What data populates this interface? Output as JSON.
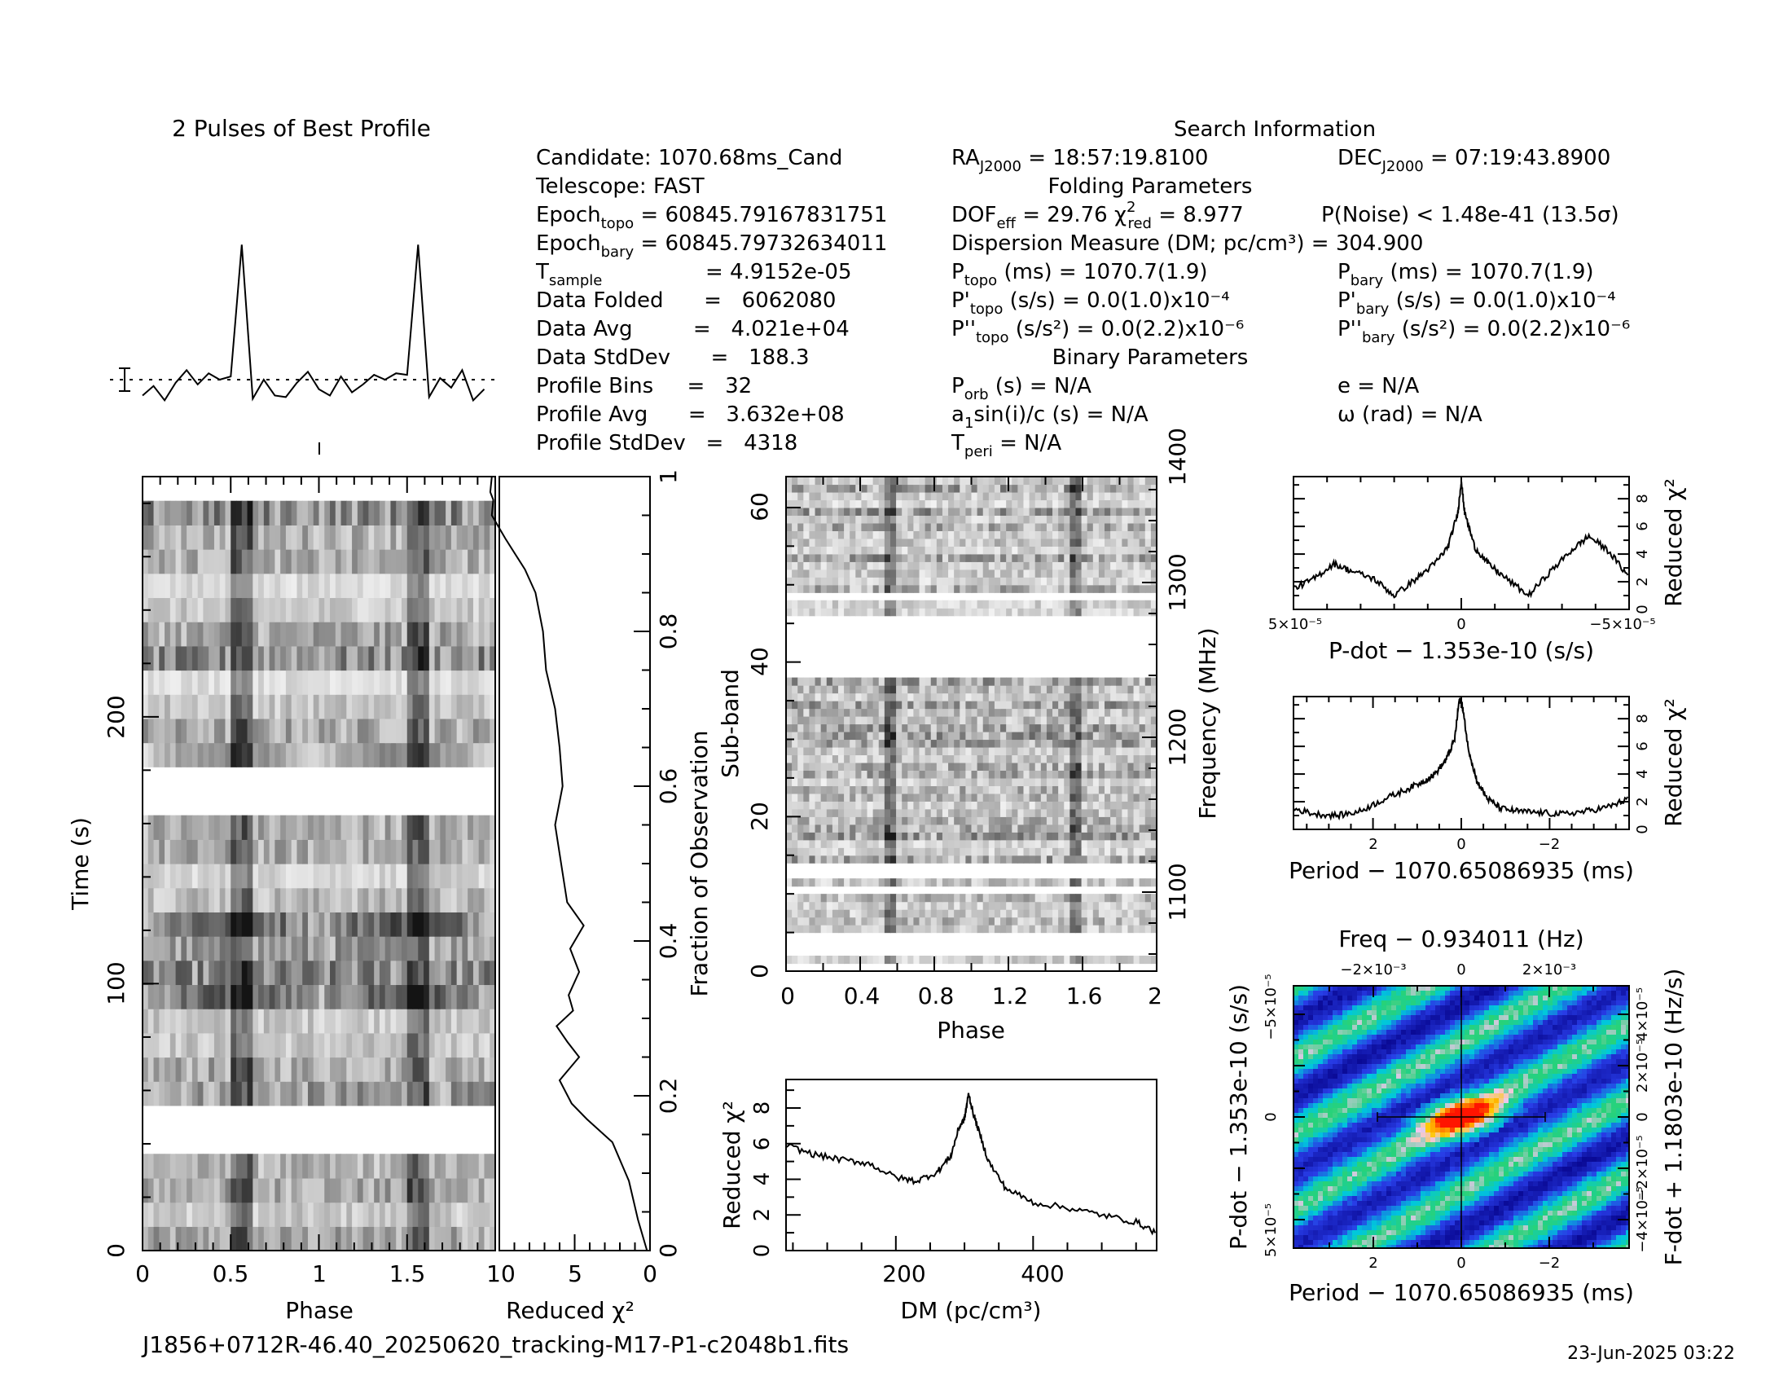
{
  "header": {
    "profile_title": "2 Pulses of Best Profile",
    "search_title": "Search Information",
    "folding_title": "Folding Parameters",
    "binary_title": "Binary Parameters"
  },
  "info": {
    "candidate": "Candidate:  1070.68ms_Cand",
    "telescope": "Telescope:  FAST",
    "epoch_topo": "= 60845.79167831751",
    "epoch_bary": "= 60845.79732634011",
    "t_sample": "=   4.9152e-05",
    "data_folded": "Data Folded      =   6062080",
    "data_avg": "Data Avg         =   4.021e+04",
    "data_stddev": "Data StdDev      =   188.3",
    "profile_bins": "Profile Bins     =   32",
    "profile_avg": "Profile Avg      =   3.632e+08",
    "profile_stddev": "Profile StdDev   =   4318",
    "ra": "= 18:57:19.8100",
    "dec": "= 07:19:43.8900",
    "dof": "= 29.76",
    "chi2_red": "= 8.977",
    "p_noise": "P(Noise) < 1.48e-41  (13.5σ)",
    "dm_line": "Dispersion Measure (DM; pc/cm³) = 304.900",
    "p_topo": "(ms) =  1070.7(1.9)",
    "p_bary": "(ms) =  1070.7(1.9)",
    "pd_topo": "(s/s) = 0.0(1.0)x10⁻⁴",
    "pd_bary": "(s/s) = 0.0(1.0)x10⁻⁴",
    "pdd_topo": "(s/s²) = 0.0(2.2)x10⁻⁶",
    "pdd_bary": "(s/s²) = 0.0(2.2)x10⁻⁶",
    "p_orb": "(s) = N/A",
    "e": "e = N/A",
    "a1sini": "sin(i)/c (s) = N/A",
    "omega": "ω (rad) = N/A",
    "t_peri": "= N/A"
  },
  "footer": {
    "filename": "J1856+0712R-46.40_20250620_tracking-M17-P1-c2048b1.fits",
    "date": "23-Jun-2025 03:22"
  },
  "colors": {
    "jet_low": "#0000a0",
    "jet_mid": "#00c8c8",
    "jet_high": "#ff2000"
  },
  "chart_data": [
    {
      "type": "line",
      "title": "2 Pulses of Best Profile",
      "x_phase": [
        0,
        0.0625,
        0.125,
        0.1875,
        0.25,
        0.3125,
        0.375,
        0.4375,
        0.5,
        0.5625,
        0.625,
        0.6875,
        0.75,
        0.8125,
        0.875,
        0.9375,
        1,
        1.0625,
        1.125,
        1.1875,
        1.25,
        1.3125,
        1.375,
        1.4375,
        1.5,
        1.5625,
        1.625,
        1.6875,
        1.75,
        1.8125,
        1.875,
        1.9375
      ],
      "values": [
        -1.0,
        -0.4,
        -1.3,
        -0.2,
        0.6,
        -0.3,
        0.4,
        0.0,
        0.2,
        8.5,
        -1.2,
        0.0,
        -1.0,
        -1.1,
        -0.2,
        0.5,
        -0.6,
        -1.0,
        0.2,
        -0.8,
        -0.3,
        0.3,
        0.0,
        0.4,
        0.3,
        8.5,
        -1.1,
        0.1,
        -0.5,
        0.6,
        -1.3,
        -0.6
      ],
      "xlim": [
        0,
        2
      ]
    },
    {
      "type": "heatmap",
      "xlabel": "Phase",
      "ylabel": "Time (s)",
      "x_ticks": [
        "0",
        "0.5",
        "1",
        "1.5"
      ],
      "y_ticks": [
        "0",
        "100",
        "200"
      ],
      "ylim": [
        0,
        290
      ],
      "empty_time_ranges_s": [
        [
          38,
          50
        ],
        [
          166,
          182
        ]
      ],
      "bright_phase": [
        0.57,
        1.57
      ]
    },
    {
      "type": "line",
      "xlabel": "Reduced χ²",
      "ylabel_right": "Fraction of Observation",
      "x_ticks": [
        "10",
        "5",
        "0"
      ],
      "y_ticks_right": [
        "0",
        "0.2",
        "0.4",
        "0.6",
        "0.8",
        "1"
      ],
      "fraction": [
        0,
        0.04,
        0.09,
        0.14,
        0.17,
        0.19,
        0.22,
        0.25,
        0.27,
        0.29,
        0.31,
        0.33,
        0.36,
        0.39,
        0.42,
        0.45,
        0.5,
        0.55,
        0.6,
        0.65,
        0.7,
        0.75,
        0.8,
        0.85,
        0.88,
        0.92,
        0.95,
        0.97,
        0.98,
        1.0
      ],
      "chi2": [
        0.2,
        0.8,
        1.4,
        2.5,
        4.2,
        5.2,
        6.0,
        4.7,
        5.5,
        6.2,
        5.1,
        5.4,
        4.7,
        5.3,
        4.4,
        5.5,
        5.9,
        6.3,
        5.8,
        6.0,
        6.3,
        6.9,
        7.1,
        7.6,
        8.3,
        9.6,
        10.5,
        10.4,
        10.6,
        10.5
      ],
      "xlim": [
        10,
        0
      ],
      "ylim": [
        0,
        1
      ]
    },
    {
      "type": "heatmap",
      "xlabel": "Phase",
      "ylabel": "Sub-band",
      "ylabel_right": "Frequency (MHz)",
      "x_ticks": [
        "0",
        "0.4",
        "0.8",
        "1.2",
        "1.6",
        "2"
      ],
      "y_ticks": [
        "0",
        "20",
        "40",
        "60"
      ],
      "y_ticks_right": [
        "1100",
        "1200",
        "1300",
        "1400"
      ],
      "ylim": [
        0,
        64
      ],
      "empty_subbands": [
        [
          0.5,
          1
        ],
        [
          2.5,
          5
        ],
        [
          10.5,
          11
        ],
        [
          12.5,
          14
        ],
        [
          38,
          46
        ],
        [
          48,
          49
        ]
      ],
      "bright_phase": [
        0.57,
        1.57
      ]
    },
    {
      "type": "line",
      "xlabel": "DM (pc/cm³)",
      "ylabel": "Reduced χ²",
      "x_ticks": [
        "200",
        "400"
      ],
      "y_ticks": [
        "0",
        "2",
        "4",
        "6",
        "8"
      ],
      "x": [
        40,
        80,
        120,
        160,
        200,
        230,
        260,
        280,
        292,
        300,
        306,
        312,
        320,
        335,
        360,
        400,
        450,
        500,
        550,
        580
      ],
      "y": [
        5.9,
        5.4,
        5.1,
        4.9,
        4.1,
        3.9,
        4.4,
        5.3,
        6.9,
        7.4,
        8.8,
        7.8,
        6.8,
        5.0,
        3.5,
        2.7,
        2.4,
        2.0,
        1.6,
        1.0
      ],
      "xlim": [
        40,
        580
      ],
      "ylim": [
        0,
        9.6
      ]
    },
    {
      "type": "line",
      "xlabel": "P-dot − 1.353e-10 (s/s)",
      "ylabel_right": "Reduced χ²",
      "x_ticks": [
        "5×10⁻⁵",
        "0",
        "−5×10⁻⁵"
      ],
      "y_ticks_right": [
        "0",
        "2",
        "4",
        "6",
        "8"
      ],
      "x": [
        5.0,
        4.4,
        3.8,
        3.3,
        2.6,
        2.0,
        1.3,
        0.8,
        0.4,
        0.1,
        0.0,
        -0.1,
        -0.4,
        -0.8,
        -1.3,
        -2.0,
        -2.6,
        -3.3,
        -3.8,
        -4.4,
        -5.0
      ],
      "y": [
        1.5,
        2.2,
        3.3,
        2.8,
        2.2,
        1.0,
        2.3,
        3.3,
        4.5,
        7.0,
        9.3,
        7.0,
        4.5,
        3.3,
        2.3,
        1.0,
        2.6,
        4.3,
        5.3,
        4.2,
        2.3
      ],
      "xlim": [
        5.0,
        -5.0
      ],
      "ylim": [
        0,
        9.6
      ]
    },
    {
      "type": "line",
      "xlabel": "Period − 1070.65086935 (ms)",
      "ylabel_right": "Reduced χ²",
      "x_ticks": [
        "2",
        "0",
        "−2"
      ],
      "y_ticks_right": [
        "0",
        "2",
        "4",
        "6",
        "8"
      ],
      "x": [
        3.8,
        3.3,
        2.8,
        2.3,
        1.8,
        1.3,
        0.9,
        0.6,
        0.35,
        0.15,
        0.05,
        0.0,
        -0.05,
        -0.15,
        -0.35,
        -0.6,
        -0.9,
        -1.3,
        -1.8,
        -2.3,
        -2.8,
        -3.3,
        -3.8
      ],
      "y": [
        1.5,
        1.1,
        1.0,
        1.3,
        2.1,
        2.8,
        3.4,
        4.0,
        5.0,
        6.5,
        9.3,
        9.3,
        8.4,
        6.0,
        3.5,
        2.2,
        1.5,
        1.3,
        1.2,
        1.1,
        1.3,
        1.6,
        2.2
      ],
      "xlim": [
        3.8,
        -3.8
      ],
      "ylim": [
        0,
        9.6
      ]
    },
    {
      "type": "heatmap",
      "title": "Freq − 0.934011 (Hz)",
      "xlabel": "Period − 1070.65086935 (ms)",
      "ylabel": "P-dot − 1.353e-10 (s/s)",
      "ylabel_right": "F-dot + 1.1803e-10 (Hz/s)",
      "x_ticks": [
        "2",
        "0",
        "−2"
      ],
      "x_ticks_top": [
        "−2×10⁻³",
        "0",
        "2×10⁻³"
      ],
      "y_ticks": [
        "−5×10⁻⁵",
        "0",
        "5×10⁻⁵"
      ],
      "y_ticks_right": [
        "4×10⁻⁵",
        "2×10⁻⁵",
        "0",
        "−2×10⁻⁵",
        "−4×10⁻⁵"
      ],
      "peak": {
        "period": 0,
        "pdot": 0
      },
      "error_bar_period_ms": 1.9
    }
  ]
}
